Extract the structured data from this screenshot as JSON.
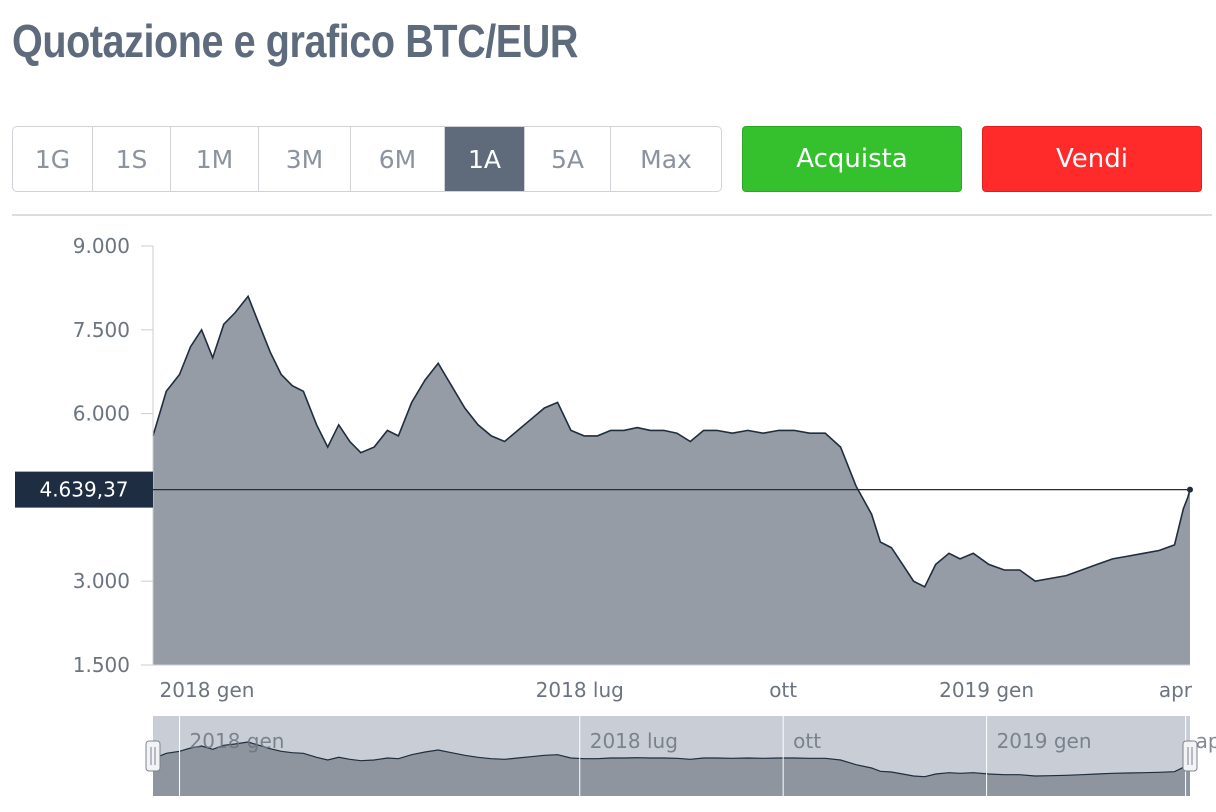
{
  "header": {
    "title": "Quotazione e grafico BTC/EUR"
  },
  "periods": [
    "1G",
    "1S",
    "1M",
    "3M",
    "6M",
    "1A",
    "5A",
    "Max"
  ],
  "active_period": "1A",
  "actions": {
    "buy_label": "Acquista",
    "sell_label": "Vendi"
  },
  "colors": {
    "buy": "#35c12d",
    "sell": "#ff2a2a",
    "area_fill": "#959ca6",
    "line": "#1f2d3d",
    "active_tab": "#5f6b7b"
  },
  "chart_data": {
    "type": "area",
    "title": "",
    "xlabel": "",
    "ylabel": "",
    "ylim": [
      1500,
      9000
    ],
    "y_ticks": [
      9000,
      7500,
      6000,
      3000,
      1500
    ],
    "y_tick_labels": [
      "9.000",
      "7.500",
      "6.000",
      "3.000",
      "1.500"
    ],
    "x_range": [
      "2017-12-20",
      "2019-04-03"
    ],
    "x_ticks": [
      {
        "date": "2018-01-01",
        "label": "2018 gen"
      },
      {
        "date": "2018-07-01",
        "label": "2018 lug"
      },
      {
        "date": "2018-10-01",
        "label": "ott"
      },
      {
        "date": "2019-01-01",
        "label": "2019 gen"
      },
      {
        "date": "2019-04-01",
        "label": "apr"
      }
    ],
    "current_price": 4639.37,
    "current_price_label": "4.639,37",
    "series": [
      {
        "x": [
          "2017-12-20",
          "2017-12-26",
          "2018-01-01",
          "2018-01-06",
          "2018-01-11",
          "2018-01-16",
          "2018-01-21",
          "2018-01-26",
          "2018-02-01",
          "2018-02-06",
          "2018-02-11",
          "2018-02-16",
          "2018-02-21",
          "2018-02-26",
          "2018-03-04",
          "2018-03-09",
          "2018-03-14",
          "2018-03-19",
          "2018-03-24",
          "2018-03-30",
          "2018-04-05",
          "2018-04-10",
          "2018-04-16",
          "2018-04-22",
          "2018-04-28",
          "2018-05-04",
          "2018-05-10",
          "2018-05-16",
          "2018-05-22",
          "2018-05-28",
          "2018-06-03",
          "2018-06-09",
          "2018-06-15",
          "2018-06-21",
          "2018-06-27",
          "2018-07-03",
          "2018-07-09",
          "2018-07-15",
          "2018-07-21",
          "2018-07-27",
          "2018-08-02",
          "2018-08-08",
          "2018-08-14",
          "2018-08-20",
          "2018-08-26",
          "2018-09-01",
          "2018-09-08",
          "2018-09-15",
          "2018-09-22",
          "2018-09-29",
          "2018-10-06",
          "2018-10-13",
          "2018-10-20",
          "2018-10-27",
          "2018-11-03",
          "2018-11-10",
          "2018-11-14",
          "2018-11-19",
          "2018-11-24",
          "2018-11-29",
          "2018-12-04",
          "2018-12-09",
          "2018-12-15",
          "2018-12-20",
          "2018-12-26",
          "2019-01-02",
          "2019-01-09",
          "2019-01-16",
          "2019-01-23",
          "2019-01-30",
          "2019-02-06",
          "2019-02-13",
          "2019-02-20",
          "2019-02-27",
          "2019-03-06",
          "2019-03-13",
          "2019-03-20",
          "2019-03-27",
          "2019-03-31",
          "2019-04-02",
          "2019-04-03"
        ],
        "y": [
          5600,
          6400,
          6700,
          7200,
          7500,
          7000,
          7600,
          7800,
          8100,
          7600,
          7100,
          6700,
          6500,
          6400,
          5800,
          5400,
          5800,
          5500,
          5300,
          5400,
          5700,
          5600,
          6200,
          6600,
          6900,
          6500,
          6100,
          5800,
          5600,
          5500,
          5700,
          5900,
          6100,
          6200,
          5700,
          5600,
          5600,
          5700,
          5700,
          5750,
          5700,
          5700,
          5650,
          5500,
          5700,
          5700,
          5650,
          5700,
          5650,
          5700,
          5700,
          5650,
          5650,
          5400,
          4700,
          4200,
          3700,
          3600,
          3300,
          3000,
          2900,
          3300,
          3500,
          3400,
          3500,
          3300,
          3200,
          3200,
          3000,
          3050,
          3100,
          3200,
          3300,
          3400,
          3450,
          3500,
          3550,
          3650,
          4300,
          4500,
          4640
        ]
      }
    ]
  }
}
